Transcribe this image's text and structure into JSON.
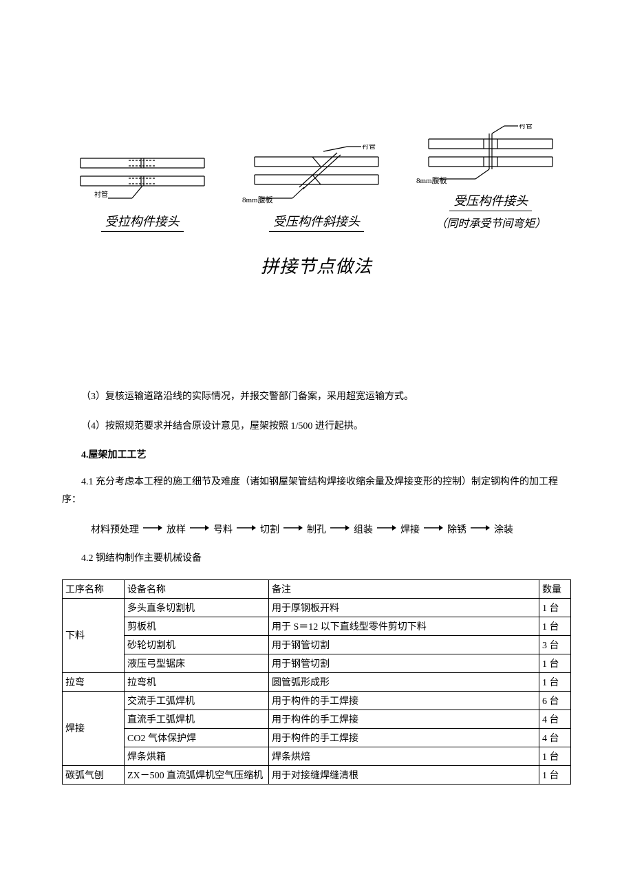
{
  "diagrams": {
    "d1": {
      "caption": "受拉构件接头",
      "label_top": "衬管",
      "stroke": "#000000"
    },
    "d2": {
      "caption": "受压构件斜接头",
      "label_top": "衬管",
      "label_bottom": "8mm腹板",
      "stroke": "#000000"
    },
    "d3": {
      "caption": "受压构件接头",
      "subcaption": "（同时承受节间弯矩）",
      "label_top": "衬管",
      "label_bottom": "8mm腹板",
      "stroke": "#000000"
    },
    "main_caption": "拼接节点做法"
  },
  "body": {
    "p3": "（3）复核运输道路沿线的实际情况，并报交警部门备案，采用超宽运输方式。",
    "p4": "（4）按照规范要求并结合原设计意见，屋架按照 1/500 进行起拱。",
    "h4": "4.屋架加工工艺",
    "p41": "4.1 充分考虑本工程的施工细节及难度（诸如钢屋架管结构焊接收缩余量及焊接变形的控制）制定钢构件的加工程序：",
    "p42": "4.2 钢结构制作主要机械设备"
  },
  "flow": {
    "steps": [
      "材料预处理",
      "放样",
      "号料",
      "切割",
      "制孔",
      "组装",
      "焊接",
      "除锈",
      "涂装"
    ]
  },
  "table": {
    "headers": {
      "proc": "工序名称",
      "equip": "设备名称",
      "note": "备注",
      "qty": "数量"
    },
    "groups": [
      {
        "proc": "下料",
        "rows": [
          {
            "equip": "多头直条切割机",
            "note": "用于厚钢板开料",
            "qty": "1 台"
          },
          {
            "equip": "剪板机",
            "note": "用于 S＝12 以下直线型零件剪切下料",
            "qty": "1 台"
          },
          {
            "equip": "砂轮切割机",
            "note": "用于钢管切割",
            "qty": "3 台"
          },
          {
            "equip": "液压弓型锯床",
            "note": "用于钢管切割",
            "qty": "1 台"
          }
        ]
      },
      {
        "proc": "拉弯",
        "rows": [
          {
            "equip": "拉弯机",
            "note": "圆管弧形成形",
            "qty": "1 台"
          }
        ]
      },
      {
        "proc": "焊接",
        "rows": [
          {
            "equip": "交流手工弧焊机",
            "note": "用于构件的手工焊接",
            "qty": "6 台"
          },
          {
            "equip": "直流手工弧焊机",
            "note": "用于构件的手工焊接",
            "qty": "4 台"
          },
          {
            "equip": "CO2 气体保护焊",
            "note": "用于构件的手工焊接",
            "qty": "4 台"
          },
          {
            "equip": "焊条烘箱",
            "note": "焊条烘焙",
            "qty": "1 台"
          }
        ]
      },
      {
        "proc": "碳弧气刨",
        "rows": [
          {
            "equip": "ZX－500 直流弧焊机空气压缩机",
            "note": "用于对接缝焊缝清根",
            "qty": "1 台"
          }
        ]
      }
    ]
  },
  "colors": {
    "text": "#000000",
    "bg": "#ffffff",
    "border": "#000000"
  }
}
